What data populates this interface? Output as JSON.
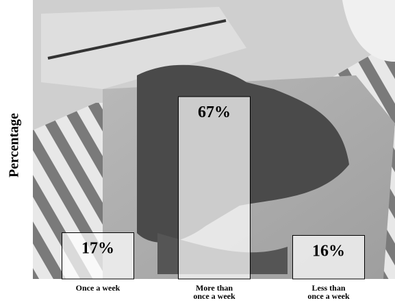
{
  "chart_data": {
    "type": "bar",
    "y_label": "Percentage",
    "categories": [
      "Once a week",
      "More than once a week",
      "Less than once a week"
    ],
    "values": [
      17,
      67,
      16
    ],
    "value_labels": [
      "17%",
      "67%",
      "16%"
    ],
    "ylim": [
      0,
      100
    ]
  }
}
